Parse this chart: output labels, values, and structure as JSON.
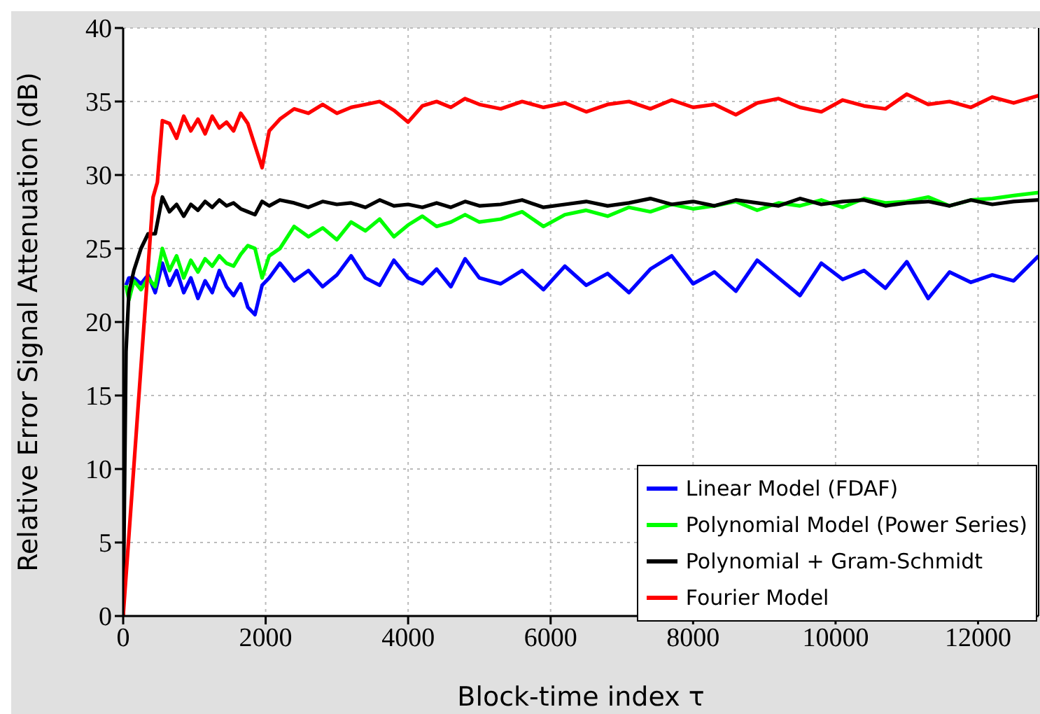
{
  "chart_data": {
    "type": "line",
    "xlabel": "Block-time index τ",
    "ylabel": "Relative Error Signal Attenuation (dB)",
    "xlim": [
      0,
      12850
    ],
    "ylim": [
      0,
      40
    ],
    "xticks": [
      0,
      2000,
      4000,
      6000,
      8000,
      10000,
      12000
    ],
    "yticks": [
      0,
      5,
      10,
      15,
      20,
      25,
      30,
      35,
      40
    ],
    "grid": true,
    "legend": "bottom right",
    "marker": "none",
    "line_style": "solid",
    "series": [
      {
        "name": "Linear Model (FDAF)",
        "color": "#0000ff",
        "x": [
          40,
          80,
          150,
          250,
          350,
          450,
          550,
          650,
          750,
          850,
          950,
          1050,
          1150,
          1250,
          1350,
          1450,
          1550,
          1650,
          1750,
          1850,
          1950,
          2050,
          2200,
          2400,
          2600,
          2800,
          3000,
          3200,
          3400,
          3600,
          3800,
          4000,
          4200,
          4400,
          4600,
          4800,
          5000,
          5300,
          5600,
          5900,
          6200,
          6500,
          6800,
          7100,
          7400,
          7700,
          8000,
          8300,
          8600,
          8900,
          9200,
          9500,
          9800,
          10100,
          10400,
          10700,
          11000,
          11300,
          11600,
          11900,
          12200,
          12500,
          12850
        ],
        "values": [
          22.5,
          23,
          23,
          22.6,
          23.2,
          22,
          24,
          22.5,
          23.5,
          22,
          23,
          21.6,
          22.8,
          22,
          23.5,
          22.4,
          21.8,
          22.6,
          21,
          20.5,
          22.5,
          23,
          24,
          22.8,
          23.5,
          22.4,
          23.2,
          24.5,
          23,
          22.5,
          24.2,
          23,
          22.6,
          23.6,
          22.4,
          24.3,
          23,
          22.6,
          23.5,
          22.2,
          23.8,
          22.5,
          23.3,
          22,
          23.6,
          24.5,
          22.6,
          23.4,
          22.1,
          24.2,
          23,
          21.8,
          24,
          22.9,
          23.5,
          22.3,
          24.1,
          21.6,
          23.4,
          22.7,
          23.2,
          22.8,
          24.5
        ]
      },
      {
        "name": "Polynomial Model (Power Series)",
        "color": "#00ff00",
        "x": [
          40,
          80,
          150,
          250,
          350,
          450,
          550,
          650,
          750,
          850,
          950,
          1050,
          1150,
          1250,
          1350,
          1450,
          1550,
          1650,
          1750,
          1850,
          1950,
          2050,
          2200,
          2400,
          2600,
          2800,
          3000,
          3200,
          3400,
          3600,
          3800,
          4000,
          4200,
          4400,
          4600,
          4800,
          5000,
          5300,
          5600,
          5900,
          6200,
          6500,
          6800,
          7100,
          7400,
          7700,
          8000,
          8300,
          8600,
          8900,
          9200,
          9500,
          9800,
          10100,
          10400,
          10700,
          11000,
          11300,
          11600,
          11900,
          12200,
          12500,
          12850
        ],
        "values": [
          22.5,
          21.5,
          22.8,
          22.2,
          23,
          22.4,
          25,
          23.5,
          24.5,
          23,
          24.2,
          23.4,
          24.3,
          23.8,
          24.5,
          24,
          23.8,
          24.6,
          25.2,
          25,
          23,
          24.5,
          25,
          26.5,
          25.8,
          26.4,
          25.6,
          26.8,
          26.2,
          27,
          25.8,
          26.6,
          27.2,
          26.5,
          26.8,
          27.3,
          26.8,
          27,
          27.5,
          26.5,
          27.3,
          27.6,
          27.2,
          27.8,
          27.5,
          28,
          27.7,
          27.9,
          28.2,
          27.6,
          28.1,
          27.9,
          28.3,
          27.8,
          28.4,
          28.1,
          28.2,
          28.5,
          27.9,
          28.3,
          28.4,
          28.6,
          28.8
        ]
      },
      {
        "name": "Polynomial + Gram-Schmidt",
        "color": "#000000",
        "x": [
          0,
          40,
          80,
          150,
          250,
          350,
          450,
          550,
          650,
          750,
          850,
          950,
          1050,
          1150,
          1250,
          1350,
          1450,
          1550,
          1650,
          1750,
          1850,
          1950,
          2050,
          2200,
          2400,
          2600,
          2800,
          3000,
          3200,
          3400,
          3600,
          3800,
          4000,
          4200,
          4400,
          4600,
          4800,
          5000,
          5300,
          5600,
          5900,
          6200,
          6500,
          6800,
          7100,
          7400,
          7700,
          8000,
          8300,
          8600,
          8900,
          9200,
          9500,
          9800,
          10100,
          10400,
          10700,
          11000,
          11300,
          11600,
          11900,
          12200,
          12500,
          12850
        ],
        "values": [
          0,
          18,
          22,
          23.5,
          25,
          26,
          26,
          28.5,
          27.5,
          28,
          27.2,
          28,
          27.6,
          28.2,
          27.8,
          28.3,
          27.9,
          28.1,
          27.7,
          27.5,
          27.3,
          28.2,
          27.9,
          28.3,
          28.1,
          27.8,
          28.2,
          28,
          28.1,
          27.8,
          28.3,
          27.9,
          28,
          27.8,
          28.1,
          27.8,
          28.2,
          27.9,
          28,
          28.3,
          27.8,
          28,
          28.2,
          27.9,
          28.1,
          28.4,
          28,
          28.2,
          27.9,
          28.3,
          28.1,
          27.9,
          28.4,
          28,
          28.2,
          28.3,
          27.9,
          28.1,
          28.2,
          27.9,
          28.3,
          28,
          28.2,
          28.3
        ]
      },
      {
        "name": "Fourier Model",
        "color": "#ff0000",
        "x": [
          0,
          420,
          480,
          550,
          650,
          750,
          850,
          950,
          1050,
          1150,
          1250,
          1350,
          1450,
          1550,
          1650,
          1750,
          1850,
          1950,
          2050,
          2200,
          2400,
          2600,
          2800,
          3000,
          3200,
          3400,
          3600,
          3800,
          4000,
          4200,
          4400,
          4600,
          4800,
          5000,
          5300,
          5600,
          5900,
          6200,
          6500,
          6800,
          7100,
          7400,
          7700,
          8000,
          8300,
          8600,
          8900,
          9200,
          9500,
          9800,
          10100,
          10400,
          10700,
          11000,
          11300,
          11600,
          11900,
          12200,
          12500,
          12850
        ],
        "values": [
          0,
          28.5,
          29.5,
          33.7,
          33.5,
          32.5,
          34,
          33,
          33.8,
          32.8,
          34,
          33.2,
          33.6,
          33,
          34.2,
          33.5,
          32,
          30.5,
          33,
          33.8,
          34.5,
          34.2,
          34.8,
          34.2,
          34.6,
          34.8,
          35,
          34.4,
          33.6,
          34.7,
          35,
          34.6,
          35.2,
          34.8,
          34.5,
          35,
          34.6,
          34.9,
          34.3,
          34.8,
          35,
          34.5,
          35.1,
          34.6,
          34.8,
          34.1,
          34.9,
          35.2,
          34.6,
          34.3,
          35.1,
          34.7,
          34.5,
          35.5,
          34.8,
          35,
          34.6,
          35.3,
          34.9,
          35.4
        ]
      }
    ]
  }
}
